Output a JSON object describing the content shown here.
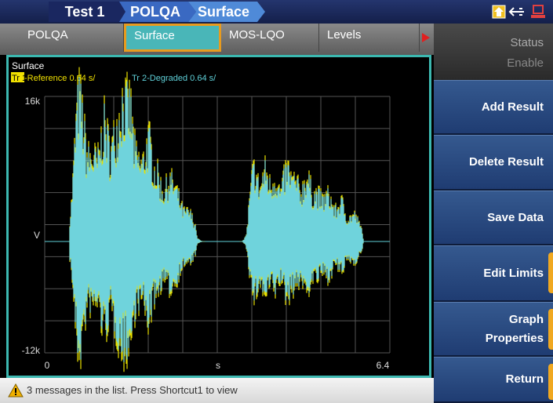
{
  "header": {
    "breadcrumb": [
      "Test 1",
      "POLQA",
      "Surface"
    ]
  },
  "tabs": [
    "POLQA",
    "Surface",
    "MOS-LQO",
    "Levels"
  ],
  "graph": {
    "title": "Surface",
    "trace1_tag": "Tr 1",
    "trace1_label": "-Reference 0.64 s/",
    "trace2_label": "Tr 2-Degraded 0.64 s/",
    "y_top": "16k",
    "y_mid": "V",
    "y_bottom": "-12k",
    "x_left": "0",
    "x_mid": "s",
    "x_right": "6.4"
  },
  "side_menu": {
    "status": "Status",
    "status_value": "Enable",
    "buttons": [
      "Add Result",
      "Delete Result",
      "Save Data",
      "Edit Limits",
      "Graph Properties",
      "Return"
    ]
  },
  "status_bar": {
    "message": "3 messages in the list. Press Shortcut1 to view"
  }
}
